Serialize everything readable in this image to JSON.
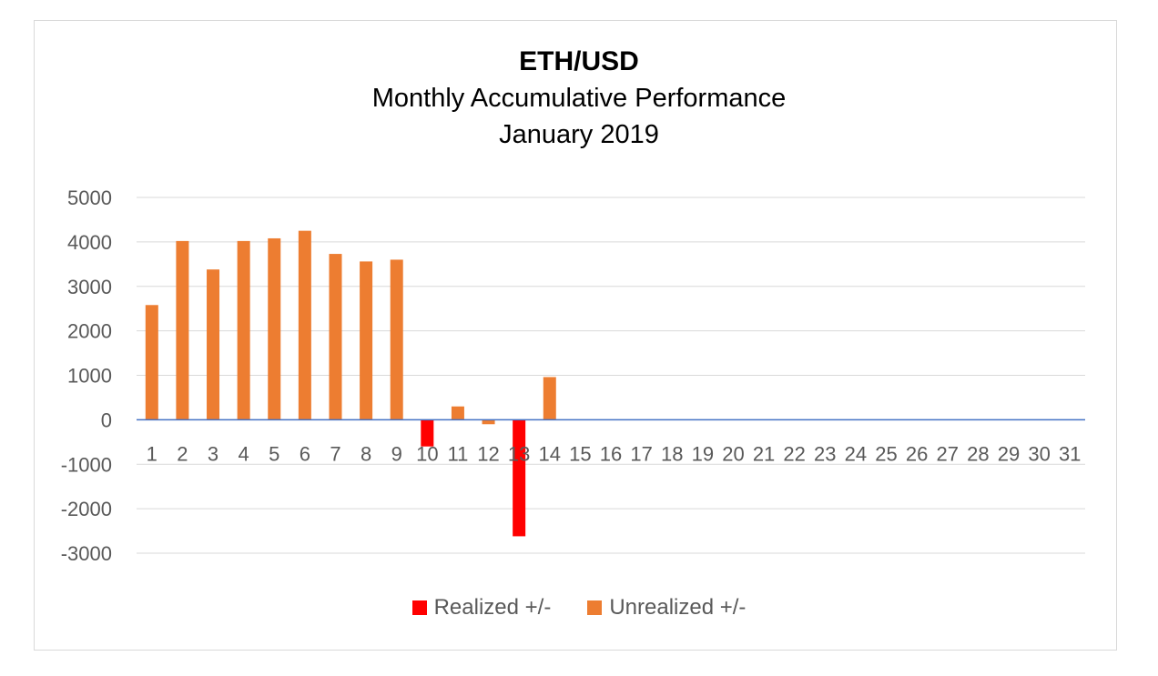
{
  "chart_data": {
    "type": "bar",
    "title": "ETH/USD",
    "subtitle_lines": [
      "Monthly Accumulative Performance",
      "January 2019"
    ],
    "categories": [
      "1",
      "2",
      "3",
      "4",
      "5",
      "6",
      "7",
      "8",
      "9",
      "10",
      "11",
      "12",
      "13",
      "14",
      "15",
      "16",
      "17",
      "18",
      "19",
      "20",
      "21",
      "22",
      "23",
      "24",
      "25",
      "26",
      "27",
      "28",
      "29",
      "30",
      "31"
    ],
    "series": [
      {
        "name": "Realized +/-",
        "color": "#ff0000",
        "values": [
          0,
          0,
          0,
          0,
          0,
          0,
          0,
          0,
          0,
          -600,
          0,
          0,
          -2620,
          0,
          0,
          0,
          0,
          0,
          0,
          0,
          0,
          0,
          0,
          0,
          0,
          0,
          0,
          0,
          0,
          0,
          0
        ]
      },
      {
        "name": "Unrealized +/-",
        "color": "#ed7d31",
        "values": [
          2580,
          4020,
          3380,
          4020,
          4080,
          4250,
          3730,
          3560,
          3600,
          0,
          300,
          -100,
          0,
          960,
          0,
          0,
          0,
          0,
          0,
          0,
          0,
          0,
          0,
          0,
          0,
          0,
          0,
          0,
          0,
          0,
          0
        ]
      }
    ],
    "ylim": [
      -3000,
      5000
    ],
    "yticks": [
      5000,
      4000,
      3000,
      2000,
      1000,
      0,
      -1000,
      -2000,
      -3000
    ],
    "grid": true,
    "legend_position": "bottom"
  }
}
